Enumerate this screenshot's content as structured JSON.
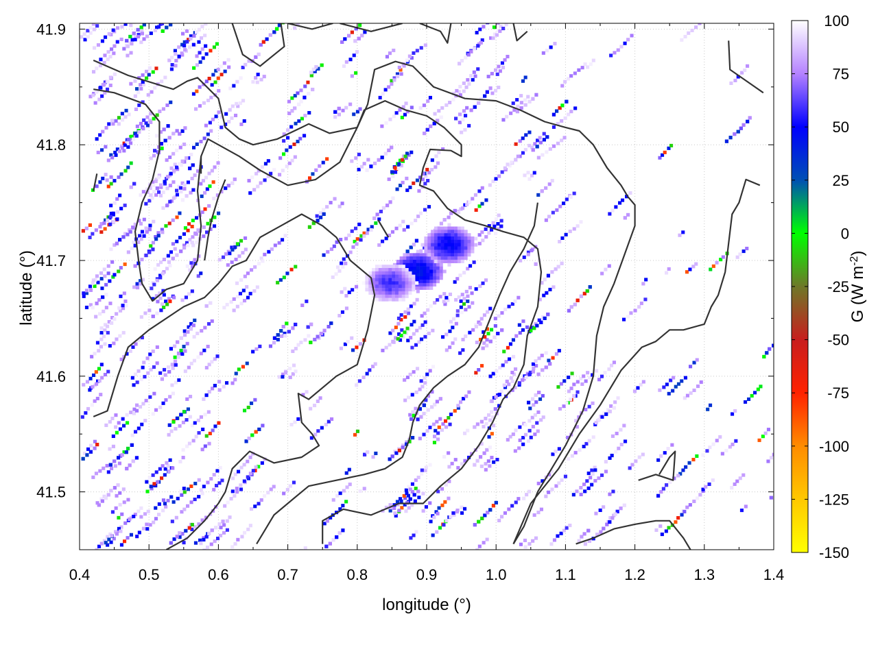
{
  "chart_data": {
    "type": "heatmap",
    "title": "",
    "xlabel": "longitude (°)",
    "ylabel": "latitude (°)",
    "xlim": [
      0.4,
      1.4
    ],
    "ylim": [
      41.45,
      41.905
    ],
    "x_ticks": [
      "0.4",
      "0.5",
      "0.6",
      "0.7",
      "0.8",
      "0.9",
      "1.0",
      "1.1",
      "1.2",
      "1.3",
      "1.4"
    ],
    "y_ticks": [
      "41.5",
      "41.6",
      "41.7",
      "41.8",
      "41.9"
    ],
    "grid": true,
    "colorbar": {
      "label": "G (W m-2)",
      "label_main": "G (W m",
      "label_sup": "-2",
      "label_end": ")",
      "range": [
        -150,
        100
      ],
      "ticks": [
        "100",
        "75",
        "50",
        "25",
        "0",
        "-25",
        "-50",
        "-75",
        "-100",
        "-125",
        "-150"
      ],
      "colors": [
        {
          "value": -150,
          "color": "#ffff00"
        },
        {
          "value": -125,
          "color": "#ffc800"
        },
        {
          "value": -100,
          "color": "#ff8c00"
        },
        {
          "value": -75,
          "color": "#ff2200"
        },
        {
          "value": -50,
          "color": "#c81e1e"
        },
        {
          "value": -25,
          "color": "#6e7828"
        },
        {
          "value": 0,
          "color": "#00ff00"
        },
        {
          "value": 25,
          "color": "#0050b4"
        },
        {
          "value": 50,
          "color": "#0000ff"
        },
        {
          "value": 75,
          "color": "#b482ff"
        },
        {
          "value": 100,
          "color": "#ffffff"
        }
      ]
    },
    "hotspots": [
      {
        "lon": 0.885,
        "lat": 41.692,
        "value": 40
      },
      {
        "lon": 0.93,
        "lat": 41.715,
        "value": 45
      },
      {
        "lon": 0.845,
        "lat": 41.682,
        "value": 55
      }
    ],
    "contours": [
      [
        [
          0.62,
          41.905
        ],
        [
          0.635,
          41.878
        ],
        [
          0.66,
          41.868
        ],
        [
          0.695,
          41.885
        ],
        [
          0.69,
          41.905
        ]
      ],
      [
        [
          0.7,
          41.905
        ],
        [
          0.735,
          41.9
        ],
        [
          0.765,
          41.905
        ]
      ],
      [
        [
          0.775,
          41.905
        ],
        [
          0.82,
          41.898
        ],
        [
          0.865,
          41.905
        ]
      ],
      [
        [
          0.89,
          41.905
        ],
        [
          0.92,
          41.898
        ],
        [
          0.93,
          41.888
        ],
        [
          0.935,
          41.905
        ]
      ],
      [
        [
          1.025,
          41.905
        ],
        [
          1.03,
          41.89
        ],
        [
          1.045,
          41.898
        ]
      ],
      [
        [
          1.335,
          41.89
        ],
        [
          1.337,
          41.865
        ],
        [
          1.385,
          41.845
        ]
      ],
      [
        [
          0.42,
          41.873
        ],
        [
          0.47,
          41.86
        ],
        [
          0.535,
          41.848
        ],
        [
          0.555,
          41.855
        ],
        [
          0.57,
          41.858
        ],
        [
          0.6,
          41.84
        ],
        [
          0.61,
          41.815
        ],
        [
          0.63,
          41.805
        ],
        [
          0.65,
          41.8
        ],
        [
          0.685,
          41.805
        ],
        [
          0.72,
          41.815
        ],
        [
          0.73,
          41.818
        ],
        [
          0.76,
          41.81
        ],
        [
          0.8,
          41.815
        ],
        [
          0.815,
          41.835
        ],
        [
          0.825,
          41.865
        ],
        [
          0.855,
          41.872
        ],
        [
          0.88,
          41.868
        ],
        [
          0.91,
          41.85
        ],
        [
          0.955,
          41.84
        ],
        [
          1.0,
          41.838
        ],
        [
          1.035,
          41.83
        ],
        [
          1.07,
          41.82
        ],
        [
          1.1,
          41.815
        ],
        [
          1.12,
          41.812
        ],
        [
          1.14,
          41.8
        ],
        [
          1.16,
          41.78
        ],
        [
          1.18,
          41.765
        ],
        [
          1.19,
          41.755
        ],
        [
          1.2,
          41.748
        ],
        [
          1.2,
          41.73
        ],
        [
          1.185,
          41.705
        ],
        [
          1.17,
          41.68
        ],
        [
          1.155,
          41.66
        ],
        [
          1.145,
          41.635
        ],
        [
          1.14,
          41.6
        ],
        [
          1.125,
          41.57
        ],
        [
          1.1,
          41.54
        ],
        [
          1.06,
          41.5
        ],
        [
          1.04,
          41.47
        ],
        [
          1.025,
          41.455
        ]
      ],
      [
        [
          0.42,
          41.848
        ],
        [
          0.45,
          41.845
        ],
        [
          0.495,
          41.835
        ],
        [
          0.515,
          41.82
        ],
        [
          0.515,
          41.795
        ],
        [
          0.505,
          41.77
        ],
        [
          0.49,
          41.75
        ],
        [
          0.48,
          41.725
        ],
        [
          0.485,
          41.7
        ],
        [
          0.49,
          41.68
        ],
        [
          0.505,
          41.665
        ],
        [
          0.525,
          41.675
        ],
        [
          0.55,
          41.68
        ],
        [
          0.57,
          41.7
        ],
        [
          0.575,
          41.73
        ],
        [
          0.57,
          41.76
        ],
        [
          0.575,
          41.79
        ],
        [
          0.585,
          41.805
        ],
        [
          0.6,
          41.8
        ],
        [
          0.63,
          41.79
        ],
        [
          0.66,
          41.778
        ],
        [
          0.7,
          41.765
        ],
        [
          0.74,
          41.77
        ],
        [
          0.775,
          41.785
        ],
        [
          0.8,
          41.815
        ],
        [
          0.81,
          41.83
        ],
        [
          0.84,
          41.838
        ],
        [
          0.87,
          41.83
        ],
        [
          0.9,
          41.825
        ],
        [
          0.925,
          41.815
        ],
        [
          0.95,
          41.8
        ],
        [
          0.95,
          41.79
        ],
        [
          0.935,
          41.795
        ],
        [
          0.905,
          41.796
        ],
        [
          0.895,
          41.78
        ],
        [
          0.89,
          41.765
        ],
        [
          0.91,
          41.76
        ],
        [
          0.93,
          41.745
        ],
        [
          0.955,
          41.735
        ],
        [
          0.985,
          41.73
        ],
        [
          1.01,
          41.725
        ],
        [
          1.04,
          41.72
        ],
        [
          1.06,
          41.71
        ],
        [
          1.065,
          41.69
        ],
        [
          1.06,
          41.66
        ],
        [
          1.045,
          41.635
        ],
        [
          1.04,
          41.61
        ],
        [
          1.025,
          41.59
        ],
        [
          1.01,
          41.58
        ],
        [
          0.995,
          41.56
        ],
        [
          0.975,
          41.54
        ],
        [
          0.95,
          41.52
        ],
        [
          0.92,
          41.505
        ],
        [
          0.895,
          41.49
        ],
        [
          0.86,
          41.49
        ],
        [
          0.82,
          41.48
        ],
        [
          0.78,
          41.485
        ],
        [
          0.75,
          41.475
        ],
        [
          0.75,
          41.455
        ]
      ],
      [
        [
          0.58,
          41.7
        ],
        [
          0.585,
          41.72
        ],
        [
          0.59,
          41.735
        ],
        [
          0.6,
          41.755
        ],
        [
          0.61,
          41.77
        ]
      ],
      [
        [
          0.42,
          41.565
        ],
        [
          0.44,
          41.57
        ],
        [
          0.455,
          41.6
        ],
        [
          0.47,
          41.625
        ],
        [
          0.5,
          41.64
        ],
        [
          0.55,
          41.66
        ],
        [
          0.58,
          41.668
        ],
        [
          0.6,
          41.68
        ],
        [
          0.62,
          41.695
        ],
        [
          0.64,
          41.7
        ],
        [
          0.66,
          41.72
        ],
        [
          0.69,
          41.73
        ],
        [
          0.72,
          41.74
        ],
        [
          0.75,
          41.73
        ],
        [
          0.77,
          41.72
        ],
        [
          0.79,
          41.7
        ],
        [
          0.82,
          41.685
        ],
        [
          0.825,
          41.67
        ],
        [
          0.815,
          41.64
        ],
        [
          0.8,
          41.61
        ],
        [
          0.77,
          41.6
        ],
        [
          0.73,
          41.58
        ],
        [
          0.715,
          41.585
        ],
        [
          0.72,
          41.56
        ],
        [
          0.735,
          41.55
        ],
        [
          0.745,
          41.54
        ],
        [
          0.72,
          41.53
        ],
        [
          0.68,
          41.525
        ],
        [
          0.645,
          41.535
        ],
        [
          0.62,
          41.52
        ],
        [
          0.61,
          41.5
        ],
        [
          0.6,
          41.49
        ],
        [
          0.58,
          41.475
        ],
        [
          0.555,
          41.46
        ],
        [
          0.525,
          41.45
        ]
      ],
      [
        [
          0.655,
          41.455
        ],
        [
          0.68,
          41.48
        ],
        [
          0.71,
          41.495
        ],
        [
          0.73,
          41.505
        ],
        [
          0.77,
          41.51
        ],
        [
          0.81,
          41.515
        ],
        [
          0.84,
          41.52
        ],
        [
          0.865,
          41.53
        ],
        [
          0.875,
          41.545
        ],
        [
          0.88,
          41.56
        ],
        [
          0.89,
          41.575
        ],
        [
          0.91,
          41.59
        ],
        [
          0.93,
          41.6
        ],
        [
          0.955,
          41.61
        ],
        [
          0.975,
          41.625
        ],
        [
          0.985,
          41.64
        ],
        [
          0.995,
          41.655
        ],
        [
          1.005,
          41.67
        ],
        [
          1.02,
          41.69
        ],
        [
          1.04,
          41.71
        ],
        [
          1.055,
          41.73
        ],
        [
          1.06,
          41.75
        ]
      ],
      [
        [
          1.115,
          41.455
        ],
        [
          1.14,
          41.46
        ],
        [
          1.17,
          41.468
        ],
        [
          1.2,
          41.472
        ],
        [
          1.23,
          41.475
        ],
        [
          1.25,
          41.475
        ],
        [
          1.27,
          41.46
        ],
        [
          1.28,
          41.45
        ]
      ],
      [
        [
          1.205,
          41.51
        ],
        [
          1.23,
          41.515
        ],
        [
          1.255,
          41.51
        ],
        [
          1.258,
          41.535
        ],
        [
          1.25,
          41.53
        ],
        [
          1.235,
          41.515
        ]
      ],
      [
        [
          1.025,
          41.455
        ],
        [
          1.05,
          41.49
        ],
        [
          1.09,
          41.52
        ],
        [
          1.12,
          41.55
        ],
        [
          1.15,
          41.575
        ],
        [
          1.18,
          41.605
        ],
        [
          1.21,
          41.625
        ],
        [
          1.23,
          41.63
        ],
        [
          1.25,
          41.64
        ],
        [
          1.27,
          41.64
        ],
        [
          1.3,
          41.645
        ],
        [
          1.31,
          41.66
        ],
        [
          1.32,
          41.67
        ],
        [
          1.33,
          41.69
        ],
        [
          1.34,
          41.74
        ],
        [
          1.35,
          41.75
        ],
        [
          1.36,
          41.77
        ],
        [
          1.38,
          41.765
        ]
      ],
      [
        [
          0.575,
          41.775
        ],
        [
          0.575,
          41.79
        ]
      ],
      [
        [
          0.425,
          41.775
        ],
        [
          0.42,
          41.76
        ]
      ],
      [
        [
          0.83,
          41.735
        ],
        [
          0.845,
          41.72
        ]
      ]
    ]
  }
}
